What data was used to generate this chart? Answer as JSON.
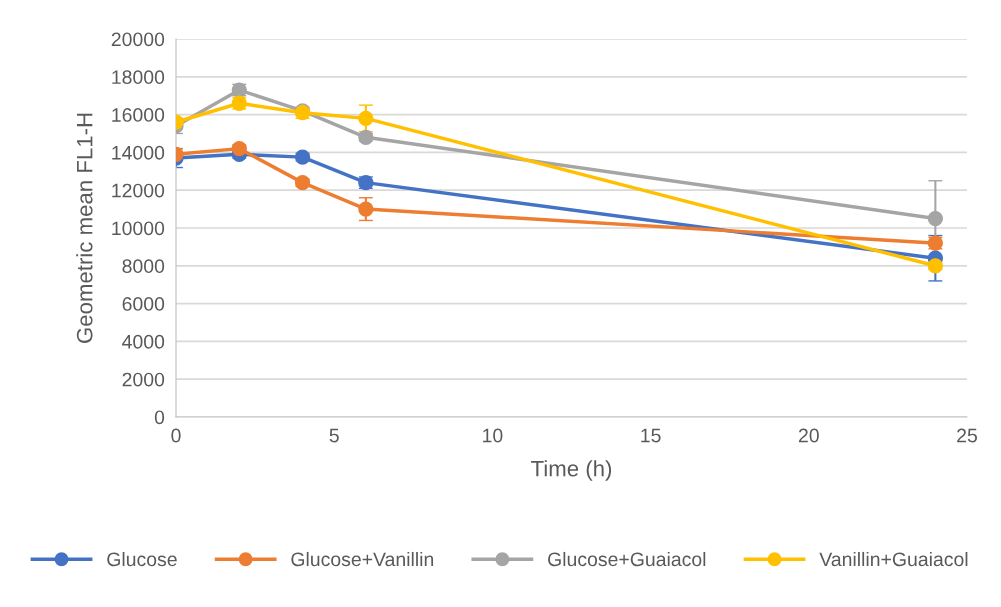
{
  "chart_data": {
    "type": "line",
    "xlabel": "Time (h)",
    "ylabel": "Geometric mean FL1-H",
    "x": [
      0,
      2,
      4,
      6,
      24
    ],
    "series": [
      {
        "name": "Glucose",
        "color": "#4472c4",
        "values": [
          13700,
          13900,
          13750,
          12400,
          8400
        ],
        "errors": [
          500,
          200,
          200,
          300,
          1200
        ]
      },
      {
        "name": "Glucose+Vanillin",
        "color": "#ed7d31",
        "values": [
          13900,
          14200,
          12400,
          11000,
          9200
        ],
        "errors": [
          300,
          200,
          200,
          600,
          300
        ]
      },
      {
        "name": "Glucose+Guaiacol",
        "color": "#a5a5a5",
        "values": [
          15400,
          17300,
          16200,
          14800,
          10500
        ],
        "errors": [
          400,
          300,
          null,
          200,
          2000
        ]
      },
      {
        "name": "Vanillin+Guaiacol",
        "color": "#ffc000",
        "values": [
          15600,
          16600,
          16100,
          15800,
          8000
        ],
        "errors": [
          200,
          300,
          300,
          700,
          200
        ]
      }
    ],
    "xlim": [
      0,
      25
    ],
    "xticks": [
      0,
      5,
      10,
      15,
      20,
      25
    ],
    "ylim": [
      0,
      20000
    ],
    "yticks": [
      0,
      2000,
      4000,
      6000,
      8000,
      10000,
      12000,
      14000,
      16000,
      18000,
      20000
    ],
    "grid": "y",
    "legend": "bottom",
    "marker": "circle",
    "line_style": "solid"
  }
}
